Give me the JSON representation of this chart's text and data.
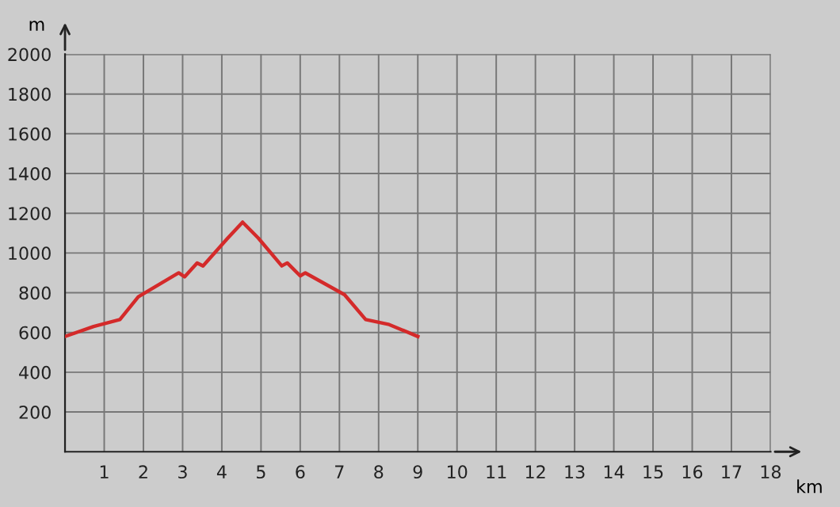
{
  "chart_data": {
    "type": "line",
    "xlabel": "km",
    "ylabel": "m",
    "x": [
      0,
      0.73,
      1.4,
      1.87,
      2.9,
      3.05,
      3.37,
      3.52,
      4.13,
      4.53,
      4.93,
      5.53,
      5.67,
      6.0,
      6.13,
      7.13,
      7.67,
      8.27,
      9
    ],
    "series": [
      {
        "color": "#d42a2a",
        "values": [
          580,
          630,
          665,
          780,
          900,
          880,
          950,
          935,
          1070,
          1155,
          1075,
          935,
          950,
          885,
          900,
          790,
          665,
          640,
          580
        ]
      }
    ],
    "xlim": [
      0,
      18
    ],
    "ylim": [
      0,
      2000
    ],
    "xticks": [
      1,
      2,
      3,
      4,
      5,
      6,
      7,
      8,
      9,
      10,
      11,
      12,
      13,
      14,
      15,
      16,
      17,
      18
    ],
    "yticks": [
      200,
      400,
      600,
      800,
      1000,
      1200,
      1400,
      1600,
      1800,
      2000
    ],
    "grid": true,
    "marker": "none",
    "line_style": "solid",
    "legend": false
  }
}
